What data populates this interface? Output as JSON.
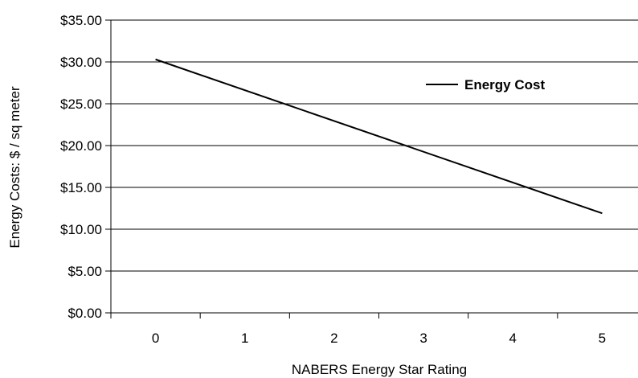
{
  "chart_data": {
    "type": "line",
    "title": "",
    "xlabel": "NABERS Energy Star Rating",
    "ylabel": "Energy Costs:  $ / sq meter",
    "categories": [
      "0",
      "1",
      "2",
      "3",
      "4",
      "5"
    ],
    "x": [
      0,
      1,
      2,
      3,
      4,
      5
    ],
    "ylim": [
      0,
      35
    ],
    "yticks": [
      0,
      5,
      10,
      15,
      20,
      25,
      30,
      35
    ],
    "ytick_labels": [
      "$0.00",
      "$5.00",
      "$10.00",
      "$15.00",
      "$20.00",
      "$25.00",
      "$30.00",
      "$35.00"
    ],
    "grid": true,
    "legend_position": "top-right",
    "series": [
      {
        "name": "Energy Cost",
        "color": "#000000",
        "x": [
          0,
          5
        ],
        "values": [
          30.3,
          11.9
        ]
      }
    ]
  }
}
